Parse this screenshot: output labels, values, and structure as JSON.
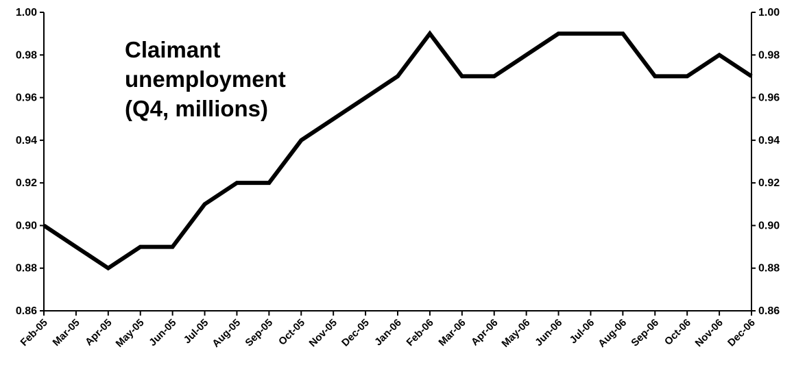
{
  "chart_data": {
    "type": "line",
    "title_lines": [
      "Claimant",
      "unemployment",
      "(Q4, millions)"
    ],
    "xlabel": "",
    "ylabel": "",
    "categories": [
      "Feb-05",
      "Mar-05",
      "Apr-05",
      "May-05",
      "Jun-05",
      "Jul-05",
      "Aug-05",
      "Sep-05",
      "Oct-05",
      "Nov-05",
      "Dec-05",
      "Jan-06",
      "Feb-06",
      "Mar-06",
      "Apr-06",
      "May-06",
      "Jun-06",
      "Jul-06",
      "Aug-06",
      "Sep-06",
      "Oct-06",
      "Nov-06",
      "Dec-06"
    ],
    "series": [
      {
        "values": [
          0.9,
          0.89,
          0.88,
          0.89,
          0.89,
          0.91,
          0.92,
          0.92,
          0.94,
          0.95,
          0.96,
          0.97,
          0.99,
          0.97,
          0.97,
          0.98,
          0.99,
          0.99,
          0.99,
          0.97,
          0.97,
          0.98,
          0.97
        ],
        "color": "#000000"
      }
    ],
    "ylim": [
      0.86,
      1.0
    ],
    "yticks": [
      "0.86",
      "0.88",
      "0.90",
      "0.92",
      "0.94",
      "0.96",
      "0.98",
      "1.00"
    ],
    "ytick_values": [
      0.86,
      0.88,
      0.9,
      0.92,
      0.94,
      0.96,
      0.98,
      1.0
    ],
    "secondary_y_axis": true,
    "grid": false,
    "legend": "none",
    "line_color": "#000000"
  }
}
